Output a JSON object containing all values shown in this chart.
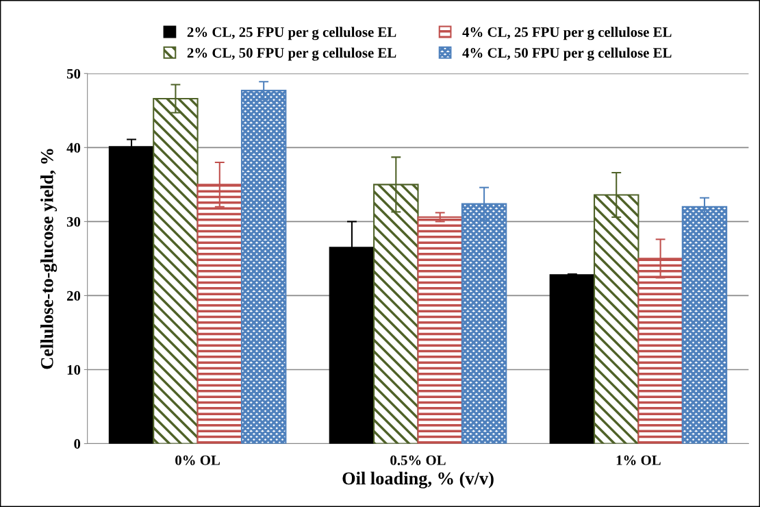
{
  "chart_data": {
    "type": "bar",
    "xlabel": "Oil loading, % (v/v)",
    "ylabel": "Cellulose-to-glucose yield, %",
    "categories": [
      "0% OL",
      "0.5% OL",
      "1% OL"
    ],
    "series": [
      {
        "name": "2% CL, 25 FPU per g cellulose EL",
        "color": "#000000",
        "values": [
          40.1,
          26.5,
          22.8
        ],
        "errors": [
          1.0,
          3.5,
          0.1
        ]
      },
      {
        "name": "2% CL, 50 FPU per g cellulose EL",
        "color": "#4f6228",
        "values": [
          46.6,
          35.0,
          33.6
        ],
        "errors": [
          1.9,
          3.7,
          3.0
        ]
      },
      {
        "name": "4% CL, 25 FPU per g cellulose EL",
        "color": "#c0504d",
        "values": [
          35.0,
          30.6,
          25.0
        ],
        "errors": [
          3.0,
          0.6,
          2.6
        ]
      },
      {
        "name": "4% CL, 50 FPU per g cellulose EL",
        "color": "#4f81bd",
        "values": [
          47.7,
          32.4,
          32.0
        ],
        "errors": [
          1.2,
          2.2,
          1.2
        ]
      }
    ],
    "ylim": [
      0,
      50
    ],
    "yticks": [
      0,
      10,
      20,
      30,
      40,
      50
    ],
    "grid": "y",
    "legend": "top"
  }
}
